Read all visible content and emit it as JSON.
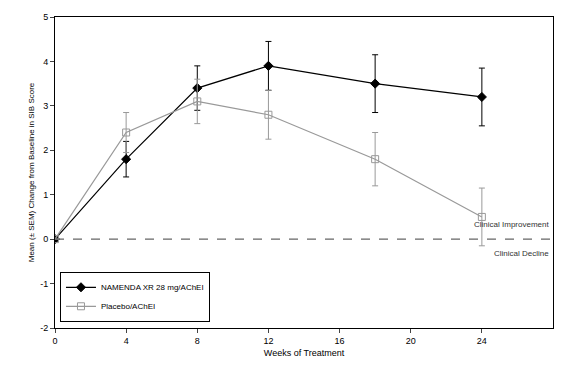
{
  "chart_data": {
    "type": "line",
    "x_label": "Weeks of Treatment",
    "y_label": "Mean (± SEM) Change from Baseline in SIB Score",
    "x": [
      0,
      4,
      8,
      12,
      18,
      24
    ],
    "series": [
      {
        "name": "NAMENDA XR 28 mg/AChEI",
        "color": "#000000",
        "marker": "diamond",
        "line_style": "solid",
        "values": [
          0,
          1.8,
          3.4,
          3.9,
          3.5,
          3.2
        ],
        "errors": [
          0,
          0.4,
          0.5,
          0.55,
          0.65,
          0.65
        ]
      },
      {
        "name": "Placebo/AChEI",
        "color": "#999999",
        "marker": "square-open",
        "line_style": "solid",
        "values": [
          0,
          2.4,
          3.1,
          2.8,
          1.8,
          0.5
        ],
        "errors": [
          0,
          0.45,
          0.5,
          0.55,
          0.6,
          0.65
        ]
      }
    ],
    "xlim": [
      0,
      28
    ],
    "xticks": [
      0,
      4,
      8,
      12,
      16,
      20,
      24
    ],
    "ylim": [
      -2,
      5
    ],
    "yticks": [
      -2,
      -1,
      0,
      1,
      2,
      3,
      4,
      5
    ],
    "reference_line": {
      "y": 0,
      "color": "#666666",
      "line_style": "dash"
    },
    "annotations": [
      {
        "text": "Clinical Improvement",
        "side": "above"
      },
      {
        "text": "Clinical Decline",
        "side": "below"
      }
    ],
    "legend": "lower left",
    "grid": false
  }
}
